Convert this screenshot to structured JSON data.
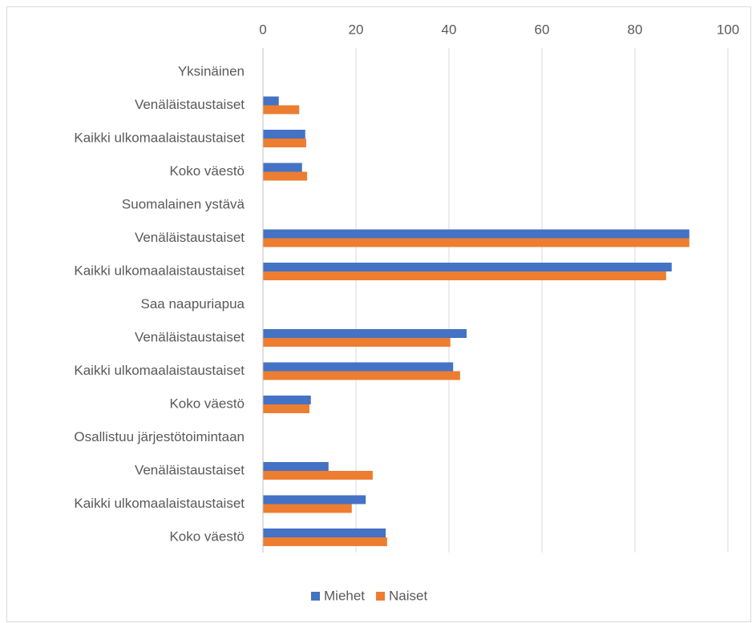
{
  "chart_data": {
    "type": "hbar",
    "categories": [
      "Yksinäinen",
      "Venäläistaustaiset",
      "Kaikki ulkomaalaistaustaiset",
      "Koko väestö",
      "Suomalainen ystävä",
      "Venäläistaustaiset",
      "Kaikki ulkomaalaistaustaiset",
      "Saa naapuriapua",
      "Venäläistaustaiset",
      "Kaikki ulkomaalaistaustaiset",
      "Koko väestö",
      "Osallistuu järjestötoimintaan",
      "Venäläistaustaiset",
      "Kaikki ulkomaalaistaustaiset",
      "Koko väestö"
    ],
    "series": [
      {
        "name": "Miehet",
        "color": "#4472c4",
        "values": [
          null,
          3.4,
          9.1,
          8.4,
          null,
          91.7,
          87.9,
          null,
          43.8,
          40.9,
          10.3,
          null,
          14.1,
          22.1,
          26.4
        ]
      },
      {
        "name": "Naiset",
        "color": "#ed7d31",
        "values": [
          null,
          7.8,
          9.3,
          9.5,
          null,
          91.7,
          86.7,
          null,
          40.3,
          42.4,
          10.0,
          null,
          23.6,
          19.1,
          26.7
        ]
      }
    ],
    "xlim": [
      0,
      100
    ],
    "xticks": [
      0,
      20,
      40,
      60,
      80,
      100
    ],
    "grid": true,
    "legend": "bottom"
  }
}
